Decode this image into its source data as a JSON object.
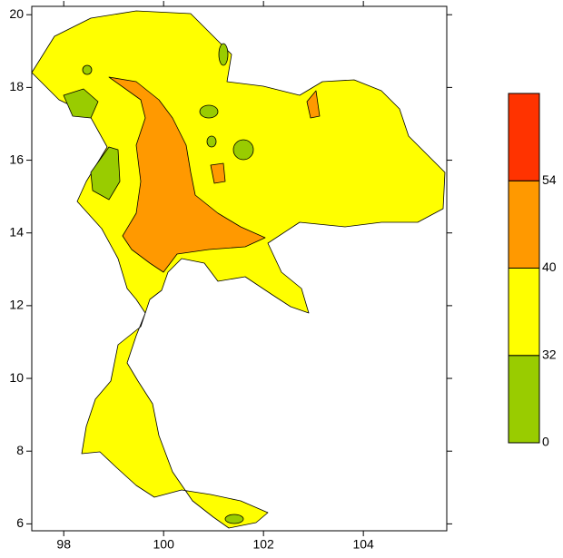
{
  "chart_data": {
    "type": "map",
    "xlim": [
      97.36,
      105.67
    ],
    "xticks": [
      98,
      100,
      102,
      104
    ],
    "ylim": [
      5.81,
      20.23
    ],
    "yticks": [
      6,
      8,
      10,
      12,
      14,
      16,
      18,
      20
    ],
    "colorbar": {
      "boundaries": [
        0,
        32,
        40,
        54
      ],
      "colors": [
        "#99cc00",
        "#ffff00",
        "#ff9900",
        "#ff3300"
      ]
    }
  }
}
